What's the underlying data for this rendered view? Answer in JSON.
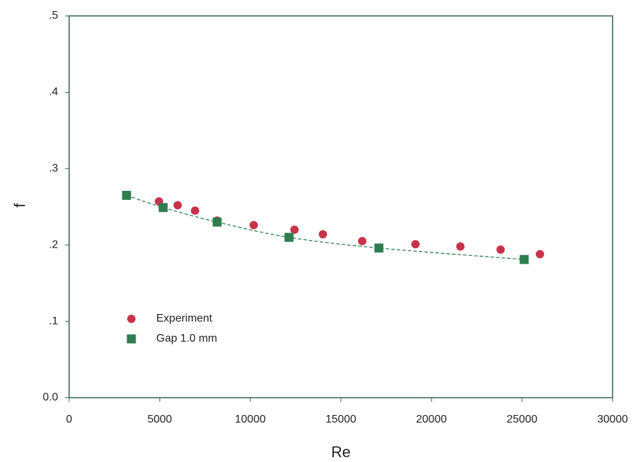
{
  "chart_data": {
    "type": "scatter",
    "x_label": "Re",
    "y_label": "f",
    "xlim": [
      0,
      30000
    ],
    "ylim": [
      0,
      0.5
    ],
    "xticks": [
      0,
      5000,
      10000,
      15000,
      20000,
      25000,
      30000
    ],
    "yticks": [
      {
        "value": 0,
        "label": "0.0"
      },
      {
        "value": 0.1,
        "label": ".1"
      },
      {
        "value": 0.2,
        "label": ".2"
      },
      {
        "value": 0.3,
        "label": ".3"
      },
      {
        "value": 0.4,
        "label": ".4"
      },
      {
        "value": 0.5,
        "label": ".5"
      }
    ],
    "series": [
      {
        "name": "Experiment",
        "color": "#c8324a",
        "marker": "circle",
        "line": false,
        "x": [
          4960,
          5990,
          6950,
          8170,
          10190,
          12440,
          14010,
          16180,
          19120,
          21600,
          23820,
          25990
        ],
        "values": [
          0.257,
          0.252,
          0.245,
          0.232,
          0.226,
          0.22,
          0.214,
          0.205,
          0.201,
          0.198,
          0.194,
          0.188
        ]
      },
      {
        "name": "Gap 1.0 mm",
        "color": "#2e7d4f",
        "marker": "square",
        "line": true,
        "x": [
          3170,
          5190,
          8170,
          12140,
          17100,
          25120
        ],
        "values": [
          0.265,
          0.249,
          0.23,
          0.21,
          0.196,
          0.181
        ]
      }
    ]
  }
}
